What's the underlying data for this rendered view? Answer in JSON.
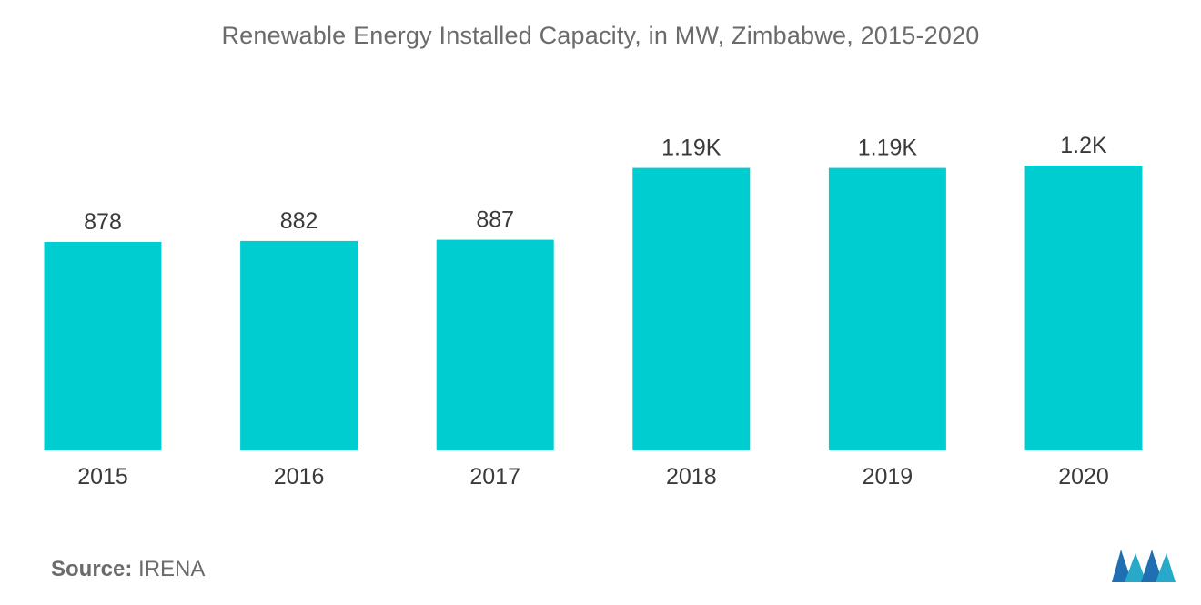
{
  "colors": {
    "bar": "#00CDCF",
    "text": "#3a3a3a",
    "title": "#6b6b6b"
  },
  "source": {
    "label": "Source:",
    "value": "IRENA"
  },
  "logo": {
    "icon": "mordor-logo-icon"
  },
  "chart_data": {
    "type": "bar",
    "title": "Renewable Energy Installed Capacity, in MW, Zimbabwe, 2015-2020",
    "xlabel": "",
    "ylabel": "",
    "categories": [
      "2015",
      "2016",
      "2017",
      "2018",
      "2019",
      "2020"
    ],
    "values": [
      878,
      882,
      887,
      1190,
      1190,
      1200
    ],
    "value_labels": [
      "878",
      "882",
      "887",
      "1.19K",
      "1.19K",
      "1.2K"
    ],
    "ylim": [
      0,
      1200
    ],
    "grid": false,
    "legend": "none"
  }
}
